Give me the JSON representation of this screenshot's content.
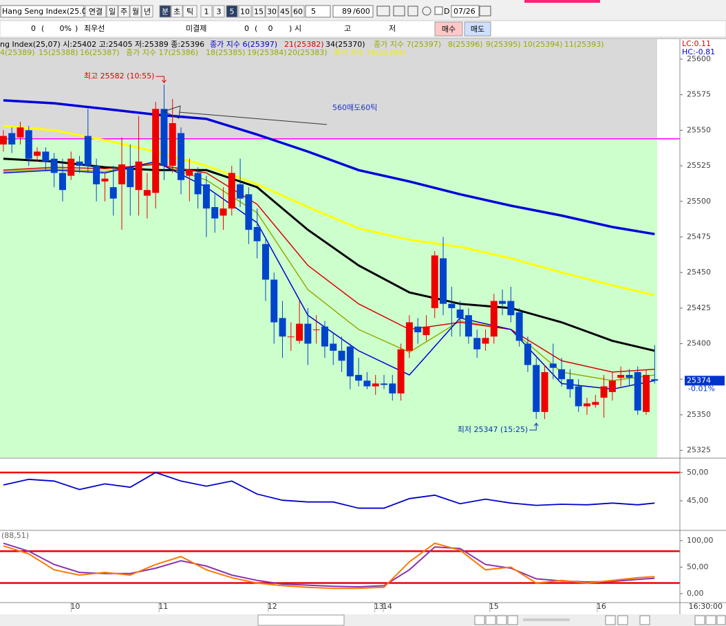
{
  "toolbar": {
    "symbol": "Hang Seng Index(25.0",
    "periods": [
      "연결",
      "일",
      "주",
      "월",
      "년"
    ],
    "units": [
      "분",
      "초",
      "틱"
    ],
    "selected_unit": 0,
    "intervals": [
      "1",
      "3",
      "5",
      "10",
      "15",
      "30",
      "45",
      "60"
    ],
    "selected_interval": 2,
    "interval_box": "5",
    "count": "89",
    "max": "/600",
    "date_flag": "D",
    "date": "07/26"
  },
  "order_bar": {
    "fields": [
      "0",
      "(",
      "0%",
      ")",
      "최우선",
      "미결제",
      "0",
      "(",
      "0",
      ")",
      "시",
      "고",
      "저"
    ],
    "buy": "매수",
    "sell": "매도"
  },
  "legend": [
    [
      {
        "text": "ng Index(25,07) 시:25402 고:25405 저:25389 종:25396",
        "color": "#000000"
      },
      {
        "text": "종가 지수 6(25397)",
        "color": "#0000cc"
      },
      {
        "text": "21(25382)",
        "color": "#dd0000"
      },
      {
        "text": "34(25370)",
        "color": "#000000"
      },
      {
        "text": "종가 지수 7(25397)",
        "color": "#99aa00"
      },
      {
        "text": "8(25396)",
        "color": "#99aa00"
      },
      {
        "text": "9(25395)",
        "color": "#99aa00"
      },
      {
        "text": "10(25394)",
        "color": "#99aa00"
      },
      {
        "text": "11(25393)",
        "color": "#99aa00"
      }
    ],
    [
      {
        "text": "4(25389)",
        "color": "#99aa00"
      },
      {
        "text": "15(25388)",
        "color": "#99aa00"
      },
      {
        "text": "16(25387)",
        "color": "#99aa00"
      },
      {
        "text": "종가 지수 17(25386)",
        "color": "#99aa00"
      },
      {
        "text": "18(25385)",
        "color": "#99aa00"
      },
      {
        "text": "19(25384)",
        "color": "#99aa00"
      },
      {
        "text": "20(25383)",
        "color": "#99aa00"
      },
      {
        "text": "종가 지수 76(25384)",
        "color": "#eeee00"
      }
    ]
  ],
  "lc": "LC:0.11",
  "hc": "HC:-0.81",
  "time_label": "16:30:00",
  "chart_data": {
    "charts": [
      {
        "type": "candlestick",
        "up_color": "#ee0000",
        "down_color": "#0044cc",
        "x": [
          0,
          1,
          2,
          3,
          4,
          5,
          6,
          7,
          8,
          9,
          10,
          11,
          12,
          13,
          14,
          15,
          16,
          17,
          18,
          19,
          20,
          21,
          22,
          23,
          24,
          25,
          26,
          27,
          28,
          29,
          30,
          31,
          32,
          33,
          34,
          35,
          36,
          37,
          38,
          39,
          40,
          41,
          42,
          43,
          44,
          45,
          46,
          47,
          48,
          49,
          50,
          51,
          52,
          53,
          54,
          55,
          56,
          57,
          58,
          59,
          60,
          61,
          62,
          63,
          64,
          65,
          66,
          67,
          68,
          69,
          70,
          71,
          72,
          73,
          74,
          75,
          76,
          77
        ],
        "open": [
          25540,
          25548,
          25545,
          25550,
          25532,
          25535,
          25530,
          25520,
          25518,
          25528,
          25546,
          25525,
          25514,
          25510,
          25512,
          25524,
          25508,
          25504,
          25506,
          25565,
          25525,
          25548,
          25518,
          25520,
          25512,
          25496,
          25490,
          25495,
          25512,
          25505,
          25482,
          25470,
          25445,
          25418,
          25405,
          25402,
          25414,
          25410,
          25412,
          25400,
          25395,
          25398,
          25378,
          25374,
          25370,
          25372,
          25372,
          25365,
          25395,
          25412,
          25406,
          25425,
          25460,
          25428,
          25424,
          25420,
          25404,
          25400,
          25405,
          25430,
          25430,
          25422,
          25400,
          25385,
          25352,
          25386,
          25382,
          25375,
          25370,
          25356,
          25357,
          25362,
          25366,
          25376,
          25378,
          25380,
          25352,
          25375
        ],
        "high": [
          25550,
          25552,
          25556,
          25553,
          25538,
          25538,
          25534,
          25530,
          25535,
          25532,
          25565,
          25530,
          25520,
          25525,
          25545,
          25540,
          25560,
          25520,
          25570,
          25582,
          25572,
          25552,
          25530,
          25524,
          25518,
          25505,
          25510,
          25525,
          25530,
          25510,
          25495,
          25475,
          25450,
          25430,
          25415,
          25430,
          25425,
          25420,
          25416,
          25408,
          25405,
          25400,
          25390,
          25380,
          25378,
          25378,
          25378,
          25400,
          25420,
          25418,
          25420,
          25465,
          25475,
          25440,
          25430,
          25425,
          25410,
          25410,
          25435,
          25438,
          25440,
          25425,
          25405,
          25390,
          25385,
          25400,
          25390,
          25382,
          25375,
          25362,
          25364,
          25378,
          25380,
          25384,
          25382,
          25384,
          25382,
          25399
        ],
        "low": [
          25535,
          25534,
          25540,
          25525,
          25528,
          25522,
          25510,
          25500,
          25515,
          25520,
          25520,
          25500,
          25500,
          25490,
          25480,
          25490,
          25490,
          25488,
          25495,
          25515,
          25520,
          25505,
          25500,
          25495,
          25475,
          25478,
          25480,
          25490,
          25496,
          25470,
          25460,
          25430,
          25400,
          25390,
          25395,
          25400,
          25385,
          25400,
          25390,
          25385,
          25380,
          25368,
          25370,
          25368,
          25364,
          25368,
          25360,
          25360,
          25390,
          25400,
          25402,
          25418,
          25420,
          25405,
          25405,
          25400,
          25390,
          25395,
          25400,
          25420,
          25415,
          25398,
          25380,
          25347,
          25347,
          25375,
          25370,
          25362,
          25352,
          25350,
          25355,
          25348,
          25360,
          25370,
          25370,
          25350,
          25350,
          25372
        ],
        "close": [
          25546,
          25540,
          25552,
          25530,
          25535,
          25528,
          25520,
          25508,
          25530,
          25525,
          25525,
          25512,
          25516,
          25502,
          25526,
          25510,
          25528,
          25508,
          25565,
          25525,
          25555,
          25515,
          25522,
          25505,
          25495,
          25488,
          25495,
          25520,
          25502,
          25480,
          25472,
          25445,
          25415,
          25405,
          25405,
          25414,
          25400,
          25410,
          25398,
          25395,
          25388,
          25377,
          25374,
          25370,
          25372,
          25371,
          25365,
          25396,
          25415,
          25408,
          25412,
          25462,
          25428,
          25425,
          25418,
          25405,
          25396,
          25404,
          25430,
          25428,
          25420,
          25402,
          25385,
          25352,
          25380,
          25383,
          25375,
          25368,
          25356,
          25358,
          25359,
          25370,
          25374,
          25378,
          25376,
          25353,
          25378,
          25374
        ],
        "lines": [
          {
            "color": "#0000dd",
            "x": [
              0,
              6,
              12,
              18,
              24,
              30,
              36,
              42,
              48,
              54,
              60,
              66,
              72,
              77
            ],
            "values": [
              25571,
              25569,
              25565,
              25561,
              25558,
              25547,
              25535,
              25522,
              25514,
              25505,
              25497,
              25490,
              25482,
              25477
            ]
          },
          {
            "color": "#ffff00",
            "x": [
              0,
              6,
              12,
              18,
              24,
              30,
              36,
              42,
              48,
              54,
              60,
              66,
              72,
              77
            ],
            "values": [
              25553,
              25550,
              25543,
              25535,
              25525,
              25512,
              25496,
              25481,
              25473,
              25468,
              25460,
              25450,
              25441,
              25434
            ]
          },
          {
            "color": "#000000",
            "x": [
              0,
              6,
              12,
              18,
              24,
              30,
              36,
              42,
              48,
              54,
              60,
              66,
              72,
              77
            ],
            "values": [
              25530,
              25528,
              25524,
              25522,
              25522,
              25510,
              25480,
              25455,
              25436,
              25428,
              25425,
              25415,
              25402,
              25395
            ]
          },
          {
            "color": "#99aa00",
            "x": [
              0,
              6,
              12,
              18,
              24,
              30,
              36,
              42,
              48,
              54,
              60,
              66,
              72,
              77
            ],
            "values": [
              25521,
              25523,
              25521,
              25527,
              25515,
              25492,
              25438,
              25410,
              25394,
              25416,
              25410,
              25380,
              25374,
              25378
            ]
          },
          {
            "color": "#dd0000",
            "x": [
              0,
              6,
              12,
              18,
              24,
              30,
              36,
              42,
              48,
              54,
              60,
              66,
              72,
              77
            ],
            "values": [
              25522,
              25524,
              25523,
              25526,
              25520,
              25498,
              25455,
              25428,
              25410,
              25415,
              25410,
              25388,
              25380,
              25382
            ]
          },
          {
            "color": "#0000cc",
            "x": [
              0,
              6,
              12,
              18,
              24,
              30,
              36,
              42,
              48,
              54,
              60,
              66,
              72,
              77
            ],
            "values": [
              25520,
              25522,
              25520,
              25528,
              25510,
              25485,
              25420,
              25395,
              25378,
              25418,
              25410,
              25372,
              25368,
              25374
            ]
          }
        ],
        "hlines": [
          {
            "value": 25544,
            "color": "#ff00ff"
          }
        ],
        "xlim": [
          -0.4,
          77.3
        ],
        "ylim": [
          25320,
          25614
        ],
        "yticks": [
          25325,
          25350,
          25375,
          25400,
          25425,
          25450,
          25475,
          25500,
          25525,
          25550,
          25575,
          25600
        ],
        "xticks": [
          {
            "value": 8.5,
            "label": "10"
          },
          {
            "value": 18.9,
            "label": "11"
          },
          {
            "value": 31.8,
            "label": "12"
          },
          {
            "value": 44.4,
            "label": "13"
          },
          {
            "value": 45.4,
            "label": "14"
          },
          {
            "value": 58.0,
            "label": "15"
          },
          {
            "value": 70.7,
            "label": "16"
          }
        ],
        "last_price": 25374,
        "change": "-0.01%",
        "annotations": [
          {
            "text": "최고 25582 (10:55)",
            "color": "#dd0000",
            "x": 19,
            "y": 25582
          },
          {
            "text": "최저 25347 (15:25)",
            "color": "#0033aa",
            "x": 63,
            "y": 25347
          },
          {
            "text": "560매도60틱",
            "color": "#2233cc"
          }
        ]
      },
      {
        "type": "line",
        "series": [
          {
            "color": "#0000cc",
            "x": [
              0,
              3,
              6,
              9,
              12,
              15,
              18,
              21,
              24,
              27,
              30,
              33,
              36,
              39,
              42,
              45,
              48,
              51,
              54,
              57,
              60,
              63,
              66,
              69,
              72,
              75,
              77
            ],
            "values": [
              47.8,
              48.8,
              48.5,
              47.0,
              48.0,
              47.4,
              50.0,
              48.5,
              47.6,
              48.5,
              46.2,
              45.1,
              44.8,
              44.8,
              43.7,
              43.7,
              45.4,
              46.0,
              44.5,
              45.3,
              44.6,
              44.2,
              44.4,
              44.3,
              44.6,
              44.3,
              44.6
            ]
          }
        ],
        "hlines": [
          {
            "value": 50,
            "color": "#ee0000"
          }
        ],
        "xlim": [
          -0.4,
          77.3
        ],
        "ylim": [
          39.9,
          52.3
        ],
        "yticks": [
          {
            "value": 45,
            "label": "45,00"
          },
          {
            "value": 50,
            "label": "50,00"
          }
        ]
      },
      {
        "type": "line",
        "title": "(88,51)",
        "series": [
          {
            "color": "#8833aa",
            "x": [
              0,
              3,
              6,
              9,
              12,
              15,
              18,
              21,
              24,
              27,
              30,
              33,
              36,
              39,
              42,
              45,
              48,
              51,
              54,
              57,
              60,
              63,
              66,
              69,
              72,
              75,
              77
            ],
            "values": [
              95,
              80,
              55,
              40,
              38,
              38,
              48,
              62,
              52,
              35,
              25,
              18,
              16,
              14,
              13,
              15,
              45,
              88,
              85,
              55,
              48,
              28,
              24,
              22,
              23,
              27,
              29
            ]
          },
          {
            "color": "#ff7700",
            "x": [
              0,
              3,
              6,
              9,
              12,
              15,
              18,
              21,
              24,
              27,
              30,
              33,
              36,
              39,
              42,
              45,
              48,
              51,
              54,
              57,
              60,
              63,
              66,
              69,
              72,
              75,
              77
            ],
            "values": [
              90,
              75,
              45,
              35,
              40,
              35,
              55,
              70,
              45,
              30,
              20,
              15,
              12,
              10,
              10,
              12,
              60,
              95,
              82,
              45,
              50,
              20,
              25,
              20,
              25,
              30,
              32
            ]
          }
        ],
        "hlines": [
          {
            "value": 80,
            "color": "#ee0000"
          },
          {
            "value": 20,
            "color": "#ee0000"
          }
        ],
        "xlim": [
          -0.4,
          77.3
        ],
        "ylim": [
          -15.6,
          118
        ],
        "yticks": [
          {
            "value": 0,
            "label": "0,00"
          },
          {
            "value": 50,
            "label": "50,00"
          },
          {
            "value": 100,
            "label": "100,00"
          }
        ]
      }
    ]
  }
}
